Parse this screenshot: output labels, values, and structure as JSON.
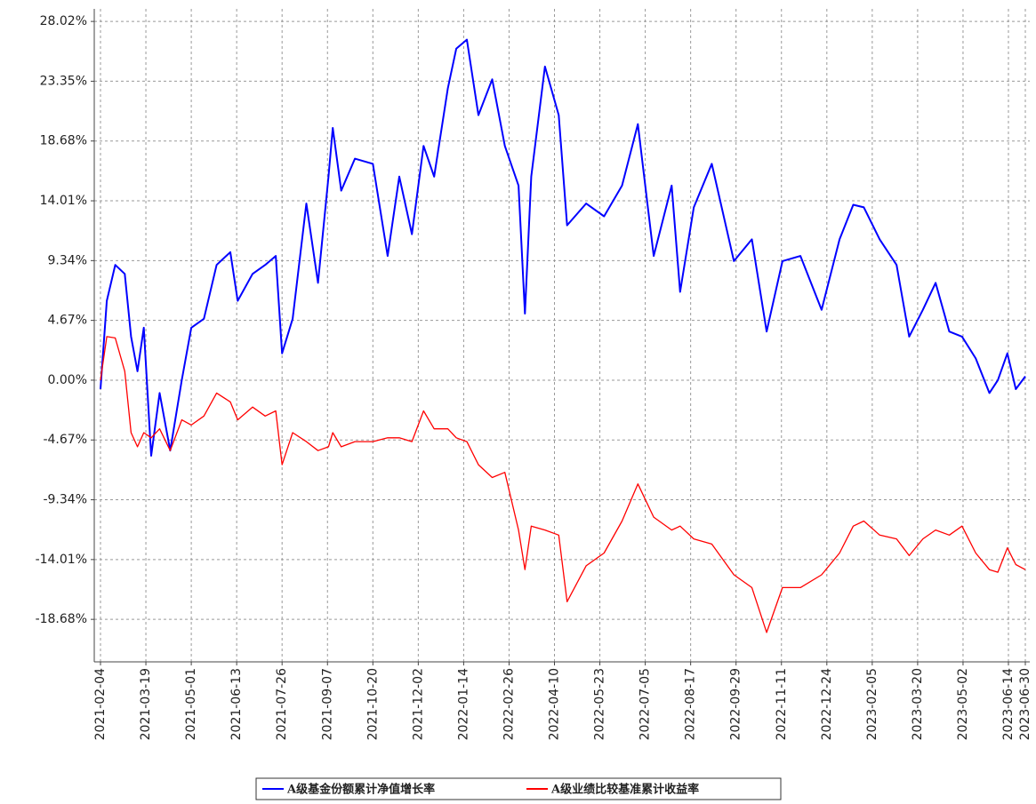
{
  "chart_data": {
    "type": "line",
    "x": [
      "2021-02-04",
      "2021-02-10",
      "2021-02-18",
      "2021-02-27",
      "2021-03-05",
      "2021-03-11",
      "2021-03-17",
      "2021-03-24",
      "2021-04-01",
      "2021-04-11",
      "2021-04-22",
      "2021-05-01",
      "2021-05-13",
      "2021-05-25",
      "2021-06-07",
      "2021-06-14",
      "2021-06-28",
      "2021-07-10",
      "2021-07-20",
      "2021-07-26",
      "2021-08-05",
      "2021-08-18",
      "2021-08-29",
      "2021-09-08",
      "2021-09-12",
      "2021-09-20",
      "2021-10-03",
      "2021-10-20",
      "2021-11-03",
      "2021-11-14",
      "2021-11-26",
      "2021-12-07",
      "2021-12-17",
      "2021-12-30",
      "2022-01-07",
      "2022-01-17",
      "2022-01-28",
      "2022-02-10",
      "2022-02-22",
      "2022-03-07",
      "2022-03-13",
      "2022-03-19",
      "2022-04-01",
      "2022-04-14",
      "2022-04-22",
      "2022-05-10",
      "2022-05-27",
      "2022-06-13",
      "2022-06-28",
      "2022-07-13",
      "2022-07-30",
      "2022-08-07",
      "2022-08-20",
      "2022-09-06",
      "2022-09-27",
      "2022-10-14",
      "2022-10-28",
      "2022-11-12",
      "2022-11-29",
      "2022-12-19",
      "2023-01-05",
      "2023-01-18",
      "2023-01-28",
      "2023-02-12",
      "2023-02-28",
      "2023-03-12",
      "2023-03-25",
      "2023-04-06",
      "2023-04-19",
      "2023-05-01",
      "2023-05-14",
      "2023-05-27",
      "2023-06-04",
      "2023-06-13",
      "2023-06-21",
      "2023-06-30"
    ],
    "series": [
      {
        "name": "A级基金份额累计净值增长率",
        "color": "#0000ff",
        "values": [
          -0.7,
          6.2,
          9.0,
          8.3,
          3.4,
          0.7,
          4.1,
          -5.9,
          -1.0,
          -5.5,
          0,
          4.1,
          4.8,
          9.0,
          10.0,
          6.2,
          8.3,
          9.0,
          9.7,
          2.1,
          4.8,
          13.8,
          7.6,
          15.9,
          19.7,
          14.8,
          17.3,
          16.9,
          9.7,
          15.9,
          11.4,
          18.3,
          15.9,
          22.8,
          25.9,
          26.6,
          20.7,
          23.5,
          18.3,
          15.2,
          5.2,
          15.9,
          24.5,
          20.7,
          12.1,
          13.8,
          12.8,
          15.2,
          20.0,
          9.7,
          15.2,
          6.9,
          13.5,
          16.9,
          9.3,
          11.0,
          3.8,
          9.3,
          9.7,
          5.5,
          11.0,
          13.7,
          13.5,
          11.0,
          9.0,
          3.4,
          5.5,
          7.6,
          3.8,
          3.4,
          1.7,
          -1.0,
          0,
          2.1,
          -0.7,
          0.3
        ]
      },
      {
        "name": "A级业绩比较基准累计收益率",
        "color": "#ff0000",
        "values": [
          0,
          3.4,
          3.3,
          0.7,
          -4.1,
          -5.2,
          -4.1,
          -4.5,
          -3.8,
          -5.5,
          -3.1,
          -3.5,
          -2.8,
          -1.0,
          -1.7,
          -3.1,
          -2.1,
          -2.8,
          -2.4,
          -6.6,
          -4.1,
          -4.8,
          -5.5,
          -5.2,
          -4.1,
          -5.2,
          -4.8,
          -4.8,
          -4.5,
          -4.5,
          -4.8,
          -2.4,
          -3.8,
          -3.8,
          -4.5,
          -4.8,
          -6.6,
          -7.6,
          -7.2,
          -11.7,
          -14.8,
          -11.4,
          -11.7,
          -12.1,
          -17.3,
          -14.5,
          -13.5,
          -11.0,
          -8.1,
          -10.7,
          -11.7,
          -11.4,
          -12.4,
          -12.8,
          -15.2,
          -16.2,
          -19.7,
          -16.2,
          -16.2,
          -15.2,
          -13.5,
          -11.4,
          -11.0,
          -12.1,
          -12.4,
          -13.7,
          -12.4,
          -11.7,
          -12.1,
          -11.4,
          -13.5,
          -14.8,
          -15.0,
          -13.1,
          -14.4,
          -14.8
        ]
      }
    ],
    "xlim": [
      "2021-02-04",
      "2023-06-30"
    ],
    "xticks": [
      "2021-02-04",
      "2021-03-19",
      "2021-05-01",
      "2021-06-13",
      "2021-07-26",
      "2021-09-07",
      "2021-10-20",
      "2021-12-02",
      "2022-01-14",
      "2022-02-26",
      "2022-04-10",
      "2022-05-23",
      "2022-07-05",
      "2022-08-17",
      "2022-09-29",
      "2022-11-11",
      "2022-12-24",
      "2023-02-05",
      "2023-03-20",
      "2023-05-02",
      "2023-06-14",
      "2023-06-30"
    ],
    "ylim": [
      -22,
      29
    ],
    "yticks": [
      {
        "value": -18.68,
        "label": "-18.68%"
      },
      {
        "value": -14.01,
        "label": "-14.01%"
      },
      {
        "value": -9.34,
        "label": "-9.34%"
      },
      {
        "value": -4.67,
        "label": "-4.67%"
      },
      {
        "value": 0,
        "label": "0.00%"
      },
      {
        "value": 4.67,
        "label": "4.67%"
      },
      {
        "value": 9.34,
        "label": "9.34%"
      },
      {
        "value": 14.01,
        "label": "14.01%"
      },
      {
        "value": 18.68,
        "label": "18.68%"
      },
      {
        "value": 23.35,
        "label": "23.35%"
      },
      {
        "value": 28.02,
        "label": "28.02%"
      }
    ],
    "grid": true
  }
}
